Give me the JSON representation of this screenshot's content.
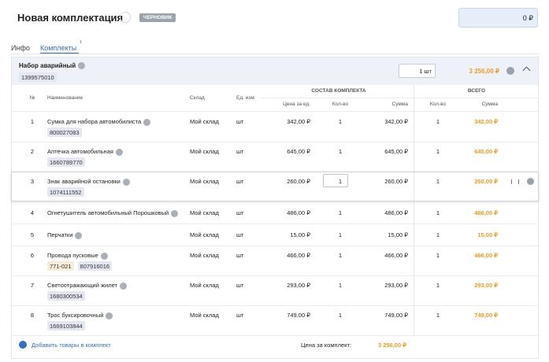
{
  "header": {
    "title": "Новая комплектация",
    "status": "ЧЕРНОВИК",
    "total": "0 ₽"
  },
  "tabs": [
    {
      "label": "Инфо"
    },
    {
      "label": "Комплекты",
      "badge": "1"
    }
  ],
  "kit": {
    "name": "Набор аварийный",
    "code": "1399575010",
    "quantity": "1 шт",
    "price": "3 256,00 ₽"
  },
  "table": {
    "group_headers": [
      "СОСТАВ КОМПЛЕКТА",
      "ВСЕГО"
    ],
    "columns": [
      "№",
      "Наименование",
      "Склад",
      "Ед. изм",
      "Цена за ед.",
      "Кол-во",
      "Сумма",
      "Кол-во",
      "Сумма"
    ],
    "rows": [
      {
        "number": "1",
        "name": "Сумка для набора автомобилиста",
        "codes": [
          "800027083"
        ],
        "warehouse": "Мой склад",
        "unit": "шт",
        "price": "342,00 ₽",
        "quantity": "1",
        "sum": "342,00 ₽",
        "total_quantity": "1",
        "total_sum": "342,00 ₽"
      },
      {
        "number": "2",
        "name": "Аптечка автомобильная",
        "codes": [
          "1660789770"
        ],
        "warehouse": "Мой склад",
        "unit": "шт",
        "price": "645,00 ₽",
        "quantity": "1",
        "sum": "645,00 ₽",
        "total_quantity": "1",
        "total_sum": "645,00 ₽"
      },
      {
        "number": "3",
        "name": "Знак аварийной остановки",
        "codes": [
          "1074111552"
        ],
        "warehouse": "Мой склад",
        "unit": "шт",
        "price": "260,00 ₽",
        "quantity": "1",
        "sum": "260,00 ₽",
        "total_quantity": "1",
        "total_sum": "260,00 ₽"
      },
      {
        "number": "4",
        "name": "Огнетушитель автомобильный Порошковый",
        "codes": [],
        "warehouse": "Мой склад",
        "unit": "шт",
        "price": "486,00 ₽",
        "quantity": "1",
        "sum": "486,00 ₽",
        "total_quantity": "1",
        "total_sum": "486,00 ₽"
      },
      {
        "number": "5",
        "name": "Перчатки",
        "codes": [],
        "warehouse": "Мой склад",
        "unit": "шт",
        "price": "15,00 ₽",
        "quantity": "1",
        "sum": "15,00 ₽",
        "total_quantity": "1",
        "total_sum": "15,00 ₽"
      },
      {
        "number": "6",
        "name": "Провода пусковые",
        "codes": [
          "771-021",
          "807916016"
        ],
        "warehouse": "Мой склад",
        "unit": "шт",
        "price": "466,00 ₽",
        "quantity": "1",
        "sum": "466,00 ₽",
        "total_quantity": "1",
        "total_sum": "466,00 ₽"
      },
      {
        "number": "7",
        "name": "Светоотражающий жилет",
        "codes": [
          "1680300534"
        ],
        "warehouse": "Мой склад",
        "unit": "шт",
        "price": "293,00 ₽",
        "quantity": "1",
        "sum": "293,00 ₽",
        "total_quantity": "1",
        "total_sum": "293,00 ₽"
      },
      {
        "number": "8",
        "name": "Трос буксировочный",
        "codes": [
          "1669103844"
        ],
        "warehouse": "Мой склад",
        "unit": "шт",
        "price": "749,00 ₽",
        "quantity": "1",
        "sum": "749,00 ₽",
        "total_quantity": "1",
        "total_sum": "749,00 ₽"
      }
    ]
  },
  "footer": {
    "add_link": "Добавить товары в комплект",
    "price_label": "Цена за комплект:",
    "price": "3 256,00 ₽"
  }
}
